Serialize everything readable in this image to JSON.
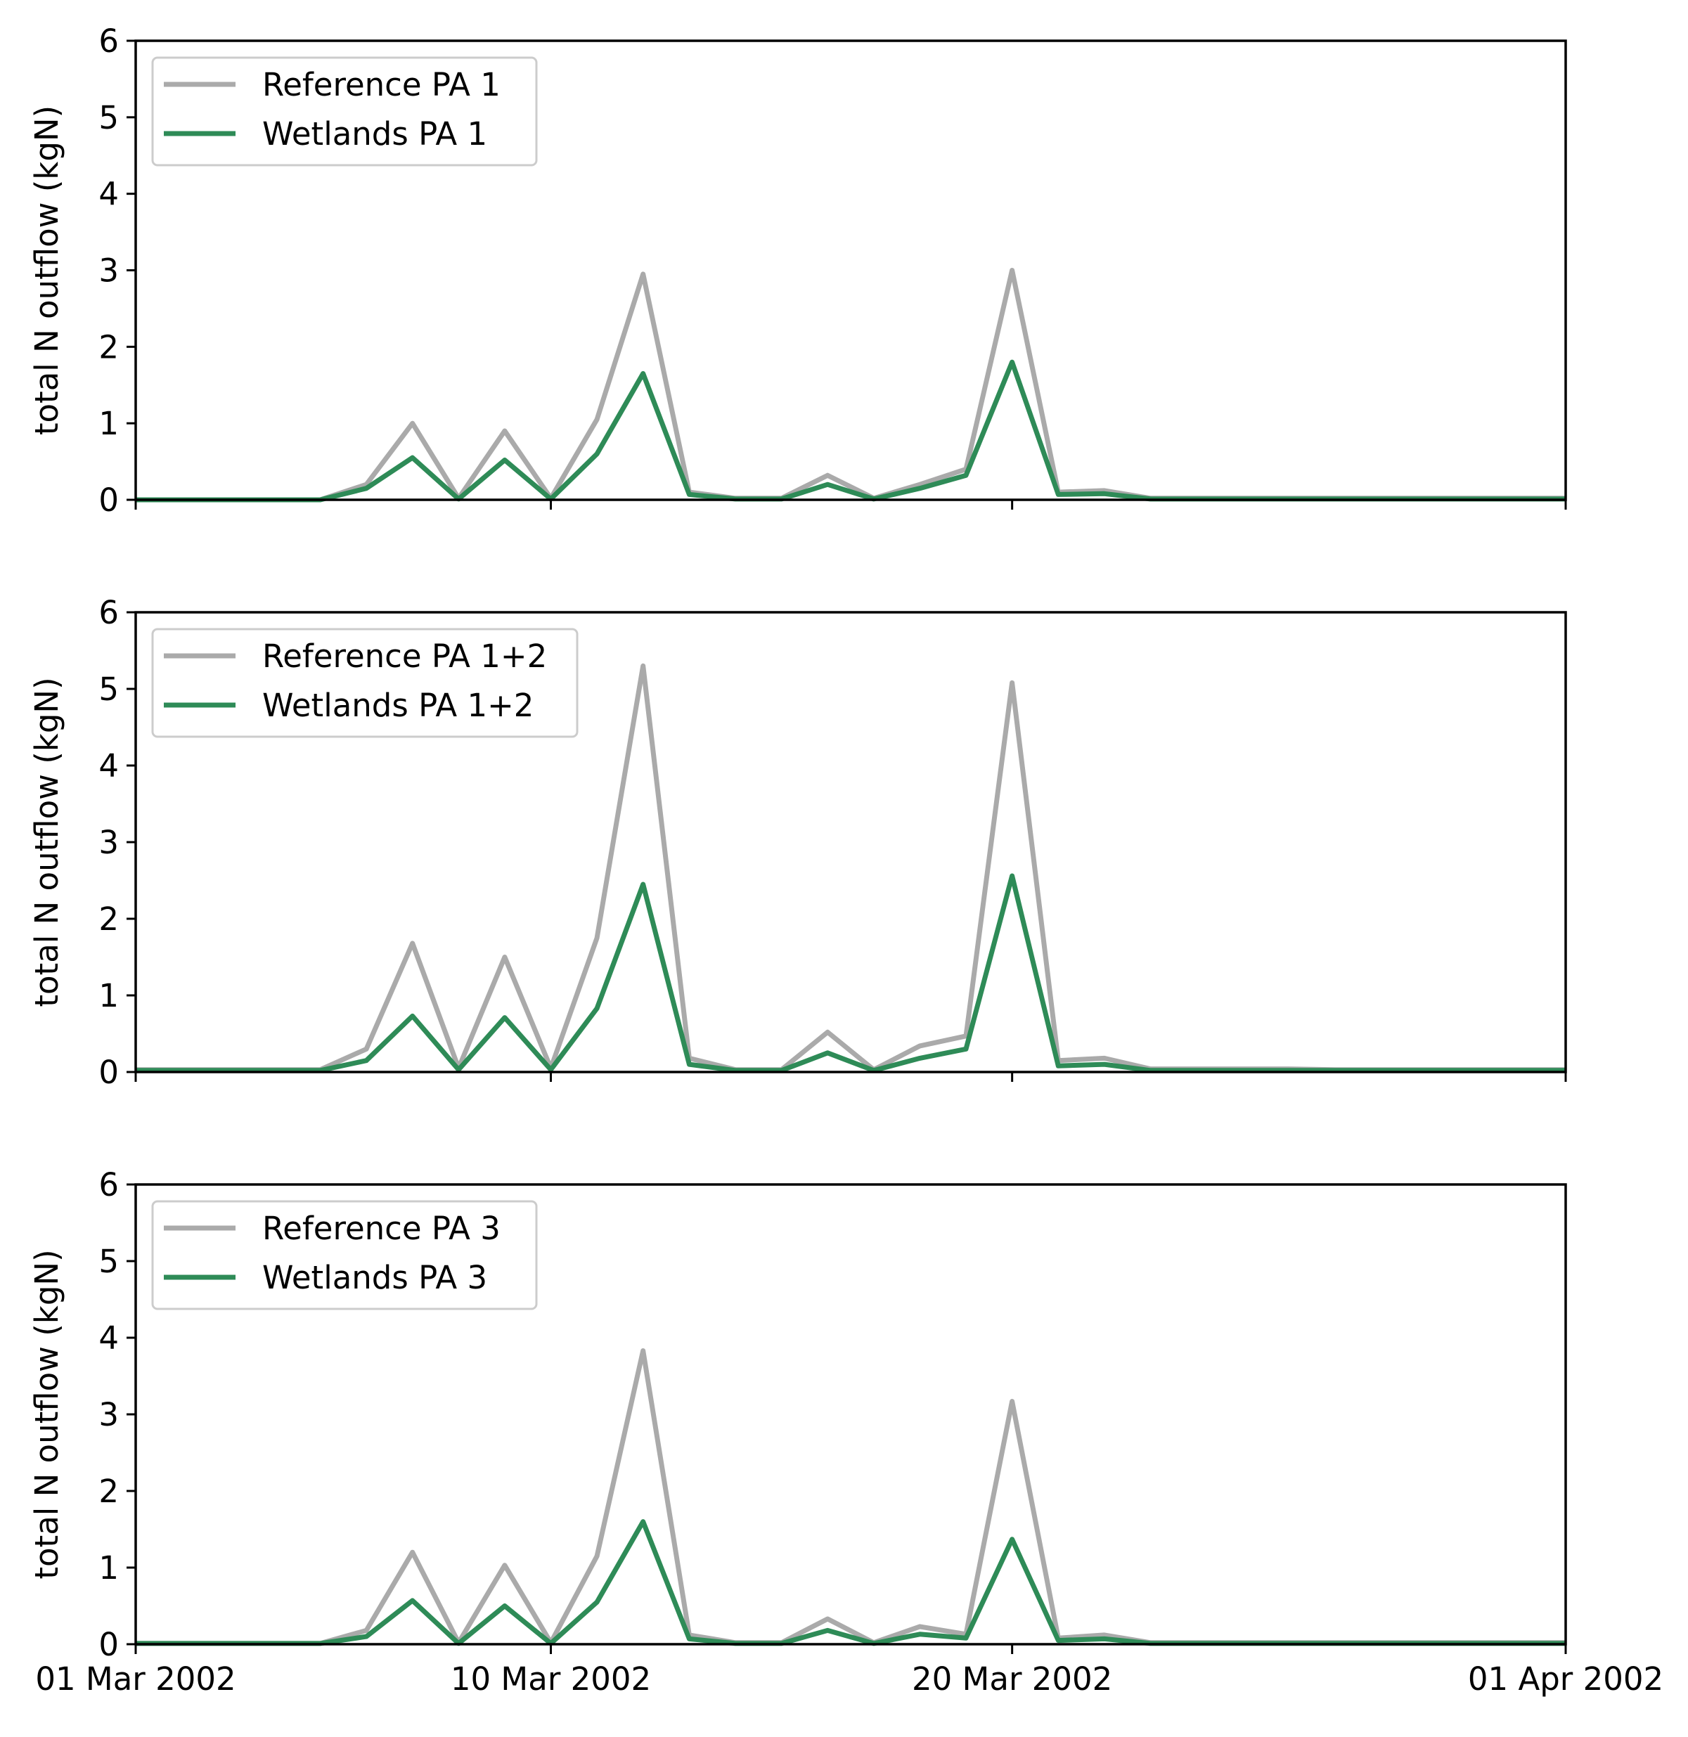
{
  "colors": {
    "reference": "#aaaaaa",
    "wetlands": "#2e8b57"
  },
  "chart_data": [
    {
      "type": "line",
      "ylabel": "total N outflow (kgN)",
      "ylim": [
        0,
        6
      ],
      "yticks": [
        0,
        1,
        2,
        3,
        4,
        5,
        6
      ],
      "xlim": [
        1,
        32
      ],
      "xticks": [
        1,
        10,
        20,
        32
      ],
      "xticklabels": [
        "01 Mar 2002",
        "10 Mar 2002",
        "20 Mar 2002",
        "01 Apr 2002"
      ],
      "legend_location": "top-left",
      "x": [
        1,
        2,
        3,
        4,
        5,
        6,
        7,
        8,
        9,
        10,
        11,
        12,
        13,
        14,
        15,
        16,
        17,
        18,
        19,
        20,
        21,
        22,
        23,
        24,
        25,
        26,
        27,
        28,
        29,
        30,
        31,
        32
      ],
      "series": [
        {
          "name": "Reference PA 1",
          "color_key": "reference",
          "values": [
            0,
            0,
            0,
            0,
            0,
            0.2,
            1.0,
            0.02,
            0.9,
            0.02,
            1.05,
            2.95,
            0.1,
            0.02,
            0.02,
            0.32,
            0.02,
            0.2,
            0.4,
            3.0,
            0.1,
            0.12,
            0.02,
            0.02,
            0.02,
            0.02,
            0.02,
            0.02,
            0.02,
            0.02,
            0.02,
            0.02
          ]
        },
        {
          "name": "Wetlands PA 1",
          "color_key": "wetlands",
          "values": [
            0,
            0,
            0,
            0,
            0,
            0.15,
            0.55,
            0.01,
            0.52,
            0.01,
            0.6,
            1.65,
            0.07,
            0.01,
            0.01,
            0.2,
            0.01,
            0.15,
            0.32,
            1.8,
            0.07,
            0.08,
            0.01,
            0.01,
            0.01,
            0.01,
            0.01,
            0.01,
            0.01,
            0.01,
            0.01,
            0.01
          ]
        }
      ]
    },
    {
      "type": "line",
      "ylabel": "total N outflow (kgN)",
      "ylim": [
        0,
        6
      ],
      "yticks": [
        0,
        1,
        2,
        3,
        4,
        5,
        6
      ],
      "xlim": [
        1,
        32
      ],
      "xticks": [
        1,
        10,
        20,
        32
      ],
      "xticklabels": [
        "01 Mar 2002",
        "10 Mar 2002",
        "20 Mar 2002",
        "01 Apr 2002"
      ],
      "legend_location": "top-left",
      "x": [
        1,
        2,
        3,
        4,
        5,
        6,
        7,
        8,
        9,
        10,
        11,
        12,
        13,
        14,
        15,
        16,
        17,
        18,
        19,
        20,
        21,
        22,
        23,
        24,
        25,
        26,
        27,
        28,
        29,
        30,
        31,
        32
      ],
      "series": [
        {
          "name": "Reference PA 1+2",
          "color_key": "reference",
          "values": [
            0.03,
            0.03,
            0.03,
            0.03,
            0.03,
            0.3,
            1.68,
            0.05,
            1.5,
            0.05,
            1.75,
            5.3,
            0.18,
            0.03,
            0.03,
            0.52,
            0.03,
            0.34,
            0.47,
            5.08,
            0.15,
            0.18,
            0.04,
            0.04,
            0.04,
            0.04,
            0.03,
            0.03,
            0.03,
            0.03,
            0.03,
            0.03
          ]
        },
        {
          "name": "Wetlands PA 1+2",
          "color_key": "wetlands",
          "values": [
            0.02,
            0.02,
            0.02,
            0.02,
            0.02,
            0.15,
            0.73,
            0.03,
            0.71,
            0.03,
            0.83,
            2.45,
            0.1,
            0.02,
            0.02,
            0.25,
            0.02,
            0.18,
            0.3,
            2.56,
            0.08,
            0.1,
            0.02,
            0.02,
            0.02,
            0.02,
            0.02,
            0.02,
            0.02,
            0.02,
            0.02,
            0.02
          ]
        }
      ]
    },
    {
      "type": "line",
      "ylabel": "total N outflow (kgN)",
      "ylim": [
        0,
        6
      ],
      "yticks": [
        0,
        1,
        2,
        3,
        4,
        5,
        6
      ],
      "xlim": [
        1,
        32
      ],
      "xticks": [
        1,
        10,
        20,
        32
      ],
      "xticklabels": [
        "01 Mar 2002",
        "10 Mar 2002",
        "20 Mar 2002",
        "01 Apr 2002"
      ],
      "legend_location": "top-left",
      "x": [
        1,
        2,
        3,
        4,
        5,
        6,
        7,
        8,
        9,
        10,
        11,
        12,
        13,
        14,
        15,
        16,
        17,
        18,
        19,
        20,
        21,
        22,
        23,
        24,
        25,
        26,
        27,
        28,
        29,
        30,
        31,
        32
      ],
      "series": [
        {
          "name": "Reference PA 3",
          "color_key": "reference",
          "values": [
            0.01,
            0.01,
            0.01,
            0.01,
            0.01,
            0.18,
            1.2,
            0.02,
            1.03,
            0.02,
            1.15,
            3.83,
            0.12,
            0.02,
            0.02,
            0.33,
            0.02,
            0.23,
            0.13,
            3.17,
            0.08,
            0.12,
            0.02,
            0.02,
            0.02,
            0.02,
            0.02,
            0.02,
            0.02,
            0.02,
            0.02,
            0.02
          ]
        },
        {
          "name": "Wetlands PA 3",
          "color_key": "wetlands",
          "values": [
            0.01,
            0.01,
            0.01,
            0.01,
            0.01,
            0.1,
            0.57,
            0.01,
            0.5,
            0.01,
            0.55,
            1.6,
            0.07,
            0.01,
            0.01,
            0.18,
            0.01,
            0.13,
            0.08,
            1.37,
            0.05,
            0.07,
            0.01,
            0.01,
            0.01,
            0.01,
            0.01,
            0.01,
            0.01,
            0.01,
            0.01,
            0.01
          ]
        }
      ]
    }
  ]
}
